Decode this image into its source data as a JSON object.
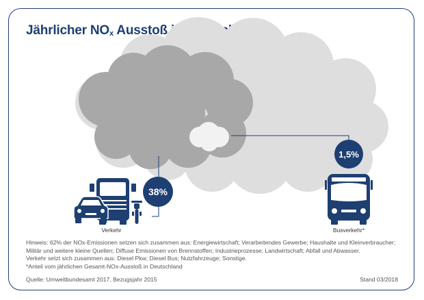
{
  "header": {
    "title_before": "Jährlicher NO",
    "title_sub": "x",
    "title_after": " Ausstoß in Deutschland"
  },
  "chart_data": {
    "type": "pie",
    "title": "Jährlicher NOx Ausstoß in Deutschland",
    "unit": "%",
    "categories": [
      "Verkehr",
      "Busverkehr*"
    ],
    "values": [
      38,
      1.5
    ],
    "value_labels": [
      "38%",
      "1,5%"
    ],
    "colors": {
      "total": "#dcdcdc",
      "verkehr": "#a9a9a9",
      "bus": "#f0f0f0",
      "accent": "#1d3f72"
    }
  },
  "icons": {
    "verkehr": [
      "car-icon",
      "truck-icon",
      "motorcycle-icon"
    ],
    "bus": "bus-icon"
  },
  "notes": {
    "line1": "Hinweis: 62% der NOx-Emissionen setzen sich zusammen aus: Energiewirtschaft; Verarbeitendes Gewerbe; Haushalte und Kleinverbraucher;",
    "line2": "Militär und weitere kleine Quellen; Diffuse Emissionen von Brennstoffen; Industrieprozesse; Landwirtschaft; Abfall und Abwasser.",
    "line3": "Verkehr setzt sich zusammen aus: Diesel Pkw; Diesel Bus; Nutzfahrzeuge; Sonstige.",
    "line4": "*Anteil vom jährlichen Gesamt-NOx-Ausstoß in Deutschland"
  },
  "footer": {
    "source": "Quelle: Umweltbundesamt 2017, Bezugsjahr 2015",
    "stand": "Stand 03/2018"
  }
}
